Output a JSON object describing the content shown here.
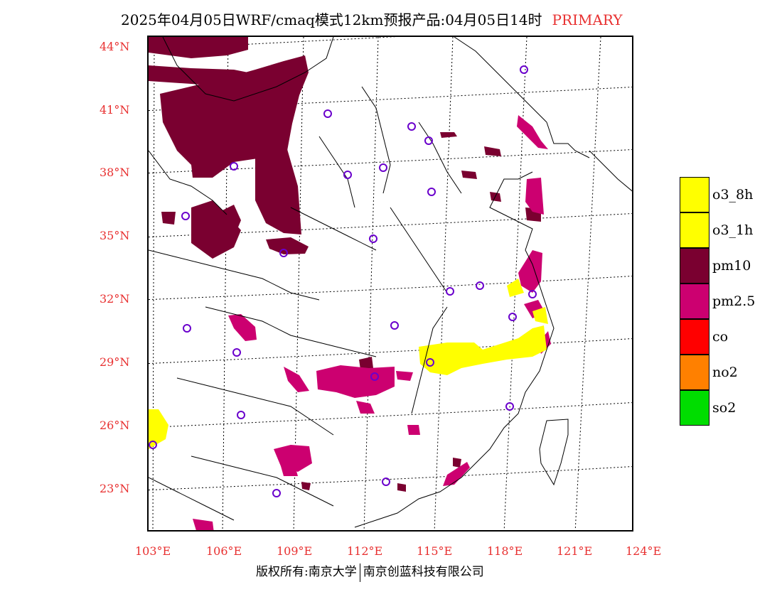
{
  "header": {
    "title": "2025年04月05日WRF/cmaq模式12km预报产品:04月05日14时",
    "primary_label": "PRIMARY"
  },
  "axes": {
    "lat_labels": [
      "44°N",
      "41°N",
      "38°N",
      "35°N",
      "32°N",
      "29°N",
      "26°N",
      "23°N"
    ],
    "lon_labels": [
      "103°E",
      "106°E",
      "109°E",
      "112°E",
      "115°E",
      "118°E",
      "121°E",
      "124°E"
    ],
    "label_color": "#e83030"
  },
  "legend": {
    "items": [
      {
        "label": "o3_8h",
        "color": "#ffff00"
      },
      {
        "label": "o3_1h",
        "color": "#ffff00"
      },
      {
        "label": "pm10",
        "color": "#7a0030"
      },
      {
        "label": "pm2.5",
        "color": "#cc0070"
      },
      {
        "label": "co",
        "color": "#ff0000"
      },
      {
        "label": "no2",
        "color": "#ff8000"
      },
      {
        "label": "so2",
        "color": "#00dd00"
      }
    ]
  },
  "footer": {
    "left": "版权所有:南京大学",
    "right": "南京创蓝科技有限公司"
  }
}
